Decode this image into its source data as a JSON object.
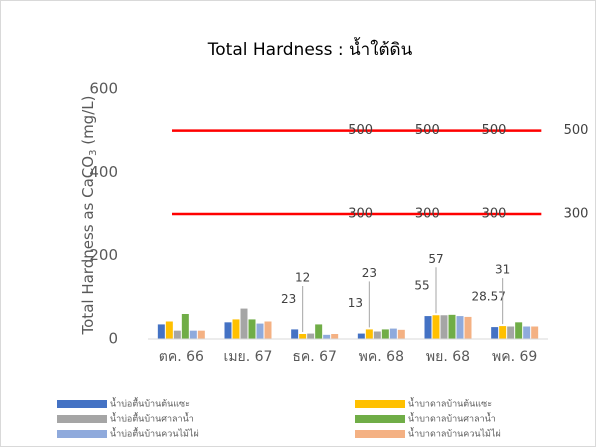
{
  "chart_data": {
    "type": "bar",
    "title": "Total Hardness : น้ำใต้ดิน",
    "y_label": [
      "Total Hardness as CaCO",
      "3",
      " (mg/L)"
    ],
    "categories": [
      "ตค. 66",
      "เมย. 67",
      "ธค. 67",
      "พค. 68",
      "พย. 68",
      "พค. 69"
    ],
    "series": [
      {
        "name": "น้ำบ่อตื้นบ้านต้นแซะ",
        "color": "#4472c4",
        "values": [
          35,
          40,
          23,
          13,
          55,
          28.57
        ],
        "value_labels": [
          null,
          null,
          "23",
          "13",
          "55",
          "28.57"
        ]
      },
      {
        "name": "น้ำบาดาลบ้านต้นแซะ",
        "color": "#ffc000",
        "values": [
          42,
          47,
          12,
          23,
          57,
          31
        ],
        "value_labels": [
          null,
          null,
          "12",
          "23",
          "57",
          "31"
        ]
      },
      {
        "name": "น้ำบ่อตื้นบ้านศาลาน้ำ",
        "color": "#a5a5a5",
        "values": [
          20,
          73,
          13,
          18,
          57,
          30
        ]
      },
      {
        "name": "น้ำบาดาลบ้านศาลาน้ำ",
        "color": "#70ad47",
        "values": [
          60,
          47,
          35,
          23,
          58,
          40
        ]
      },
      {
        "name": "น้ำบ่อตื้นบ้านควนไม้ไผ่",
        "color": "#8faadc",
        "values": [
          20,
          37,
          10,
          25,
          55,
          30
        ]
      },
      {
        "name": "น้ำบาดาลบ้านควนไม้ไผ่",
        "color": "#f4b183",
        "values": [
          20,
          42,
          12,
          22,
          53,
          30
        ]
      }
    ],
    "reference_lines": [
      {
        "value": 500,
        "color": "#ff0000"
      },
      {
        "value": 300,
        "color": "#ff0000"
      }
    ],
    "ylim": [
      0,
      600
    ],
    "yticks": [
      0,
      200,
      400,
      600
    ],
    "grid": false,
    "legend": "bottom"
  }
}
